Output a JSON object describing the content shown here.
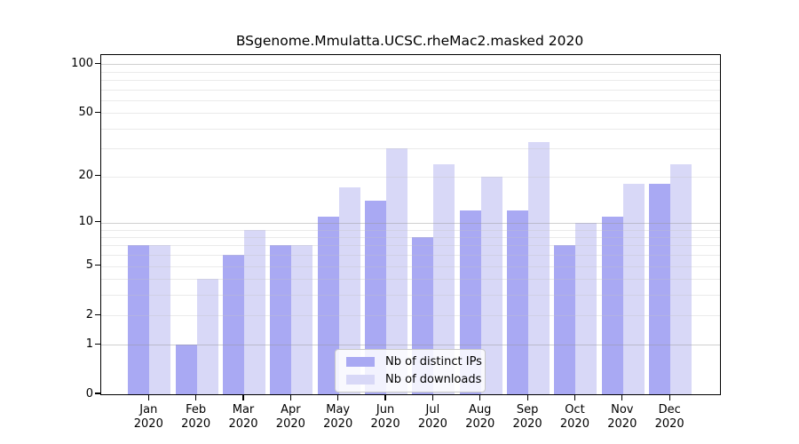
{
  "chart_data": {
    "type": "bar",
    "title": "BSgenome.Mmulatta.UCSC.rheMac2.masked 2020",
    "categories": [
      "Jan",
      "Feb",
      "Mar",
      "Apr",
      "May",
      "Jun",
      "Jul",
      "Aug",
      "Sep",
      "Oct",
      "Nov",
      "Dec"
    ],
    "x_tick_second_line": "2020",
    "series": [
      {
        "name": "Nb of distinct IPs",
        "color": "#a9a9f3",
        "values": [
          7,
          1,
          6,
          7,
          11,
          14,
          8,
          12,
          12,
          7,
          11,
          18
        ]
      },
      {
        "name": "Nb of downloads",
        "color": "#d8d8f7",
        "values": [
          7,
          4,
          9,
          7,
          17,
          30,
          24,
          20,
          33,
          10,
          18,
          24
        ]
      }
    ],
    "y_axis": {
      "scale": "log10(1+v)",
      "ticks": [
        0,
        1,
        2,
        5,
        10,
        20,
        50,
        100
      ],
      "min": 0,
      "max": 100
    },
    "grid": {
      "on": true,
      "major_values": [
        1,
        10,
        100
      ],
      "minor_values": [
        2,
        3,
        4,
        5,
        6,
        7,
        8,
        9,
        20,
        30,
        40,
        50,
        60,
        70,
        80,
        90
      ],
      "major_color": "rgba(150,150,150,0.45)",
      "minor_color": "rgba(195,195,195,0.35)"
    },
    "legend": {
      "position": "inside-bottom-center",
      "entries": [
        "Nb of distinct IPs",
        "Nb of downloads"
      ]
    },
    "xlabel": "",
    "ylabel": ""
  }
}
